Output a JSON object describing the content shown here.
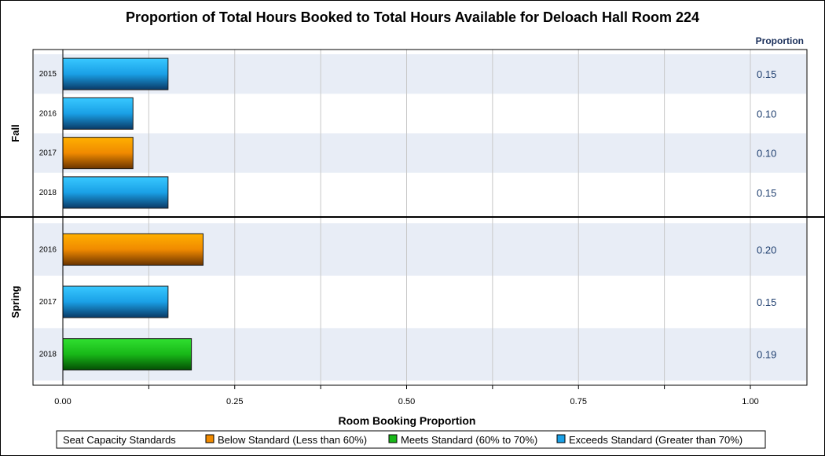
{
  "chart_data": {
    "type": "bar",
    "orientation": "horizontal",
    "title": "Proportion of Total Hours Booked to Total Hours Available for Deloach Hall Room 224",
    "xlabel": "Room Booking Proportion",
    "value_column_header": "Proportion",
    "xlim": [
      0,
      1.05
    ],
    "x_ticks": [
      {
        "value": 0,
        "label": "0.00"
      },
      {
        "value": 0.25,
        "label": "0.25"
      },
      {
        "value": 0.5,
        "label": "0.50"
      },
      {
        "value": 0.75,
        "label": "0.75"
      },
      {
        "value": 1.0,
        "label": "1.00"
      }
    ],
    "gridlines": [
      0.125,
      0.25,
      0.375,
      0.5,
      0.625,
      0.75,
      0.875,
      1.0
    ],
    "grid": true,
    "groups": [
      {
        "name": "Fall",
        "rows": [
          {
            "label": "2015",
            "value": 0.153,
            "value_label": "0.15",
            "category": "exceeds"
          },
          {
            "label": "2016",
            "value": 0.102,
            "value_label": "0.10",
            "category": "exceeds"
          },
          {
            "label": "2017",
            "value": 0.102,
            "value_label": "0.10",
            "category": "below"
          },
          {
            "label": "2018",
            "value": 0.153,
            "value_label": "0.15",
            "category": "exceeds"
          }
        ]
      },
      {
        "name": "Spring",
        "rows": [
          {
            "label": "2016",
            "value": 0.204,
            "value_label": "0.20",
            "category": "below"
          },
          {
            "label": "2017",
            "value": 0.153,
            "value_label": "0.15",
            "category": "exceeds"
          },
          {
            "label": "2018",
            "value": 0.187,
            "value_label": "0.19",
            "category": "meets"
          }
        ]
      }
    ],
    "legend": {
      "title": "Seat Capacity Standards",
      "placement": "bottom",
      "entries": [
        {
          "key": "below",
          "label": "Below Standard (Less than 60%)"
        },
        {
          "key": "meets",
          "label": "Meets Standard (60% to 70%)"
        },
        {
          "key": "exceeds",
          "label": "Exceeds Standard (Greater than 70%)"
        }
      ]
    },
    "colors": {
      "below": {
        "light": "#ffb000",
        "mid": "#f08a00",
        "dark": "#6a3400"
      },
      "meets": {
        "light": "#30e030",
        "mid": "#18b818",
        "dark": "#044e04"
      },
      "exceeds": {
        "light": "#38c8ff",
        "mid": "#1aa0e6",
        "dark": "#0a3a66"
      },
      "band": "#e8edf6",
      "grid": "#c8c8c8",
      "value_text": "#1f3f6f",
      "header_text": "#1a2f5a"
    }
  }
}
